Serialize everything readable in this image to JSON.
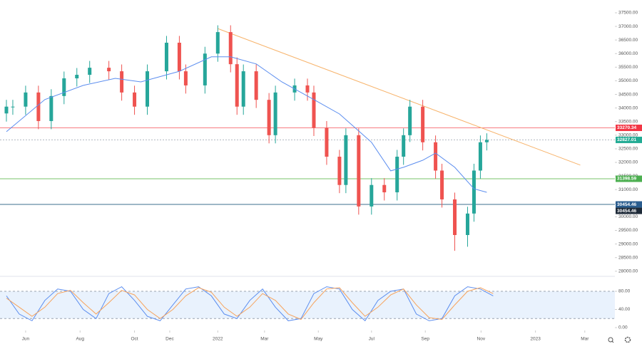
{
  "chart_data": [
    {
      "type": "candlestick",
      "x": [
        1,
        2,
        4,
        6,
        8,
        10,
        12,
        14,
        17,
        19,
        21,
        23,
        26,
        28,
        29,
        32,
        34,
        36,
        37,
        38,
        40,
        42,
        43,
        46,
        48,
        49,
        51,
        53,
        54,
        56,
        58,
        60,
        62,
        63,
        64,
        66,
        68,
        69,
        71,
        73,
        74,
        75,
        76
      ],
      "open": [
        33800,
        34050,
        34050,
        34570,
        33520,
        34440,
        35090,
        35220,
        35480,
        35350,
        34570,
        34050,
        35350,
        36400,
        35350,
        34830,
        36000,
        36790,
        35610,
        34050,
        35350,
        34300,
        33000,
        34570,
        34830,
        34570,
        33270,
        32210,
        31170,
        33000,
        30380,
        31170,
        30900,
        32210,
        33000,
        34050,
        32740,
        31700,
        30640,
        29330,
        30120,
        31700,
        32740
      ],
      "high": [
        34300,
        34300,
        34820,
        34820,
        34690,
        35340,
        35470,
        35730,
        35730,
        35600,
        34820,
        35600,
        36650,
        36650,
        35600,
        36250,
        37040,
        37040,
        35860,
        35600,
        35600,
        34550,
        34820,
        35080,
        35080,
        34820,
        33520,
        32460,
        33250,
        33250,
        31420,
        31420,
        32460,
        33250,
        34300,
        34300,
        32990,
        31950,
        30890,
        30370,
        31950,
        32990,
        33070
      ],
      "low": [
        33500,
        33750,
        33750,
        33220,
        33220,
        34140,
        34790,
        34920,
        35050,
        34270,
        33750,
        33750,
        35050,
        35050,
        34530,
        34530,
        35700,
        35310,
        33750,
        33750,
        34000,
        32700,
        32700,
        34270,
        34270,
        32970,
        31910,
        30870,
        30870,
        30080,
        30080,
        30600,
        30600,
        31910,
        32750,
        32440,
        31400,
        30340,
        28750,
        28900,
        29820,
        31400,
        32440
      ],
      "close": [
        34050,
        34050,
        34570,
        33520,
        34440,
        35090,
        35220,
        35480,
        35350,
        34570,
        34050,
        35350,
        36400,
        35350,
        34830,
        36000,
        36790,
        35610,
        34050,
        35350,
        34300,
        33000,
        34570,
        34830,
        34570,
        33270,
        32210,
        31170,
        33000,
        30380,
        31170,
        30900,
        32210,
        33000,
        34050,
        32740,
        31700,
        30640,
        29330,
        30120,
        31700,
        32740,
        32827
      ],
      "up_color": "#26a69a",
      "down_color": "#ef5350",
      "moving_average": {
        "x": [
          1,
          7,
          13,
          18,
          22,
          28,
          33,
          36,
          40,
          44,
          49,
          53,
          58,
          61,
          63,
          66,
          68,
          71,
          74,
          76
        ],
        "values": [
          33130,
          34310,
          34830,
          35090,
          34960,
          35350,
          35880,
          35880,
          35620,
          34960,
          34310,
          33780,
          32740,
          31690,
          31820,
          32080,
          32340,
          31820,
          31030,
          30900
        ],
        "color": "#5b8def"
      },
      "trend_line": {
        "x": [
          34,
          90.6
        ],
        "values": [
          36920,
          31900
        ],
        "color": "#f7b36b"
      },
      "levels": [
        {
          "value": 33270.34,
          "label": "33270.34",
          "color": "#f77c80",
          "label_color": "#f23645"
        },
        {
          "value": 32827.01,
          "label": "32827.01",
          "color": "#b0b8c0",
          "label_color": "#22ab94"
        },
        {
          "value": 31398.59,
          "label": "31398.59",
          "color": "#7ac36a",
          "label_color": "#4caf50"
        },
        {
          "value": 30454.46,
          "label": "30454.46",
          "color": "#3d6f8e",
          "label_color": "#2a5d8f"
        },
        {
          "value": 30454.46,
          "label": "30454.46",
          "color": "#3d6f8e",
          "label_color": "#1e2a38"
        }
      ],
      "xlim": [
        0,
        96
      ],
      "ylim": [
        27890,
        37970
      ],
      "yticks": [
        {
          "value": 28000,
          "label": "28000.00"
        },
        {
          "value": 28500,
          "label": "28500.00"
        },
        {
          "value": 29000,
          "label": "29000.00"
        },
        {
          "value": 29500,
          "label": "29500.00"
        },
        {
          "value": 30000,
          "label": "30000.00"
        },
        {
          "value": 30500,
          "label": "30500.00"
        },
        {
          "value": 31000,
          "label": "31000.00"
        },
        {
          "value": 31500,
          "label": "31500.00"
        },
        {
          "value": 32000,
          "label": "32000.00"
        },
        {
          "value": 32500,
          "label": "32500.00"
        },
        {
          "value": 33000,
          "label": "33000.00"
        },
        {
          "value": 33500,
          "label": "33500.00"
        },
        {
          "value": 34000,
          "label": "34000.00"
        },
        {
          "value": 34500,
          "label": "34500.00"
        },
        {
          "value": 35000,
          "label": "35000.00"
        },
        {
          "value": 35500,
          "label": "35500.00"
        },
        {
          "value": 36000,
          "label": "36000.00"
        },
        {
          "value": 36500,
          "label": "36500.00"
        },
        {
          "value": 37000,
          "label": "37000.00"
        },
        {
          "value": 37500,
          "label": "37500.00"
        }
      ],
      "xticks": [
        {
          "value": 4,
          "label": "Jun"
        },
        {
          "value": 12.5,
          "label": "Aug"
        },
        {
          "value": 21,
          "label": "Oct"
        },
        {
          "value": 26.5,
          "label": "Dec"
        },
        {
          "value": 34,
          "label": "2022"
        },
        {
          "value": 41.3,
          "label": "Mar"
        },
        {
          "value": 49.7,
          "label": "May"
        },
        {
          "value": 58,
          "label": "Jul"
        },
        {
          "value": 66.4,
          "label": "Sep"
        },
        {
          "value": 75.1,
          "label": "Nov"
        },
        {
          "value": 83.6,
          "label": "2023"
        },
        {
          "value": 91.3,
          "label": "Mar"
        }
      ]
    },
    {
      "type": "oscillator",
      "x": [
        1,
        3,
        5,
        7,
        9,
        11,
        13,
        15,
        17,
        19,
        21,
        23,
        25,
        27,
        29,
        31,
        33,
        35,
        37,
        39,
        41,
        43,
        45,
        47,
        49,
        51,
        53,
        55,
        57,
        59,
        61,
        63,
        65,
        67,
        69,
        71,
        73,
        75,
        77
      ],
      "series": [
        {
          "color": "#5b8def",
          "values": [
            70,
            30,
            15,
            60,
            85,
            80,
            40,
            20,
            75,
            90,
            60,
            25,
            15,
            50,
            85,
            90,
            70,
            30,
            20,
            60,
            85,
            45,
            15,
            20,
            75,
            90,
            85,
            40,
            15,
            60,
            80,
            85,
            30,
            15,
            20,
            70,
            90,
            85,
            70
          ]
        },
        {
          "color": "#f7a35c",
          "values": [
            65,
            45,
            25,
            45,
            75,
            82,
            55,
            30,
            55,
            82,
            72,
            40,
            20,
            40,
            70,
            88,
            78,
            45,
            25,
            45,
            75,
            60,
            30,
            18,
            55,
            85,
            88,
            55,
            25,
            45,
            72,
            85,
            50,
            22,
            18,
            50,
            80,
            88,
            75
          ]
        }
      ],
      "band": [
        20,
        80
      ],
      "band_color": "#dbeafb",
      "xlim": [
        0,
        96
      ],
      "ylim": [
        0,
        102
      ],
      "yticks": [
        {
          "value": 0,
          "label": "0.00"
        },
        {
          "value": 40,
          "label": "40.00"
        },
        {
          "value": 80,
          "label": "80.00"
        }
      ]
    }
  ]
}
